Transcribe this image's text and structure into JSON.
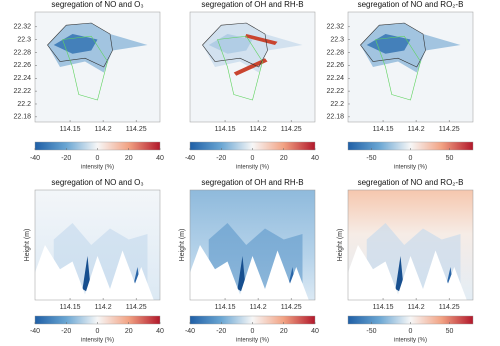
{
  "chart_data": [
    {
      "type": "heatmap",
      "title": "segregation of NO and O₃",
      "xlim": [
        114.097,
        114.286
      ],
      "xticks": [
        114.15,
        114.2,
        114.25
      ],
      "ylim": [
        22.172,
        22.343
      ],
      "yticks": [
        22.18,
        22.2,
        22.22,
        22.24,
        22.26,
        22.28,
        22.3,
        22.32
      ],
      "colorbar": {
        "lim": [
          -40,
          40
        ],
        "ticks": [
          -40,
          -20,
          0,
          20,
          40
        ],
        "label": "intensity (%)"
      }
    },
    {
      "type": "heatmap",
      "title": "segregation of OH and RH-B",
      "xlim": [
        114.097,
        114.286
      ],
      "xticks": [
        114.15,
        114.2,
        114.25
      ],
      "colorbar": {
        "lim": [
          -40,
          40
        ],
        "ticks": [
          -40,
          -20,
          0,
          20,
          40
        ],
        "label": "intensity (%)"
      }
    },
    {
      "type": "heatmap",
      "title": "segregation of NO and RO₂-B",
      "xlim": [
        114.097,
        114.286
      ],
      "xticks": [
        114.15,
        114.2,
        114.25
      ],
      "ylim": [
        22.172,
        22.343
      ],
      "yticks": [
        22.18,
        22.2,
        22.22,
        22.24,
        22.26,
        22.28,
        22.3,
        22.32
      ],
      "colorbar": {
        "lim": [
          -80,
          80
        ],
        "ticks": [
          -50,
          0,
          50
        ],
        "label": "intensity (%)"
      }
    },
    {
      "type": "heatmap",
      "title": "segregation of NO and O₃",
      "xlim": [
        114.097,
        114.286
      ],
      "xticks": [
        114.15,
        114.2,
        114.25
      ],
      "ylabel": "Height (m)",
      "colorbar": {
        "lim": [
          -40,
          40
        ],
        "ticks": [
          -40,
          -20,
          0,
          20,
          40
        ],
        "label": "intensity (%)"
      }
    },
    {
      "type": "heatmap",
      "title": "segregation of OH and RH-B",
      "xlim": [
        114.097,
        114.286
      ],
      "xticks": [
        114.15,
        114.2,
        114.25
      ],
      "ylabel": "Height (m)",
      "colorbar": {
        "lim": [
          -40,
          40
        ],
        "ticks": [
          -40,
          -20,
          0,
          20,
          40
        ],
        "label": "intensity (%)"
      }
    },
    {
      "type": "heatmap",
      "title": "segregation of NO and RO₂-B",
      "xlim": [
        114.097,
        114.286
      ],
      "xticks": [
        114.15,
        114.2,
        114.25
      ],
      "ylabel": "Height (m)",
      "colorbar": {
        "lim": [
          -80,
          80
        ],
        "ticks": [
          -50,
          0,
          50
        ],
        "label": "intensity (%)"
      }
    }
  ]
}
